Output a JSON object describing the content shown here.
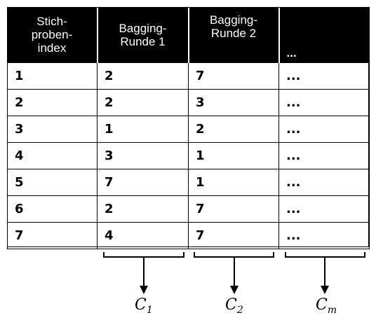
{
  "header": {
    "col1": [
      "Stich-",
      "proben-",
      "index"
    ],
    "col2": [
      "Bagging-",
      "Runde 1"
    ],
    "col3": [
      "Bagging-",
      "Runde 2"
    ],
    "col4": "..."
  },
  "rows": [
    [
      "1",
      "2",
      "7",
      "..."
    ],
    [
      "2",
      "2",
      "3",
      "..."
    ],
    [
      "3",
      "1",
      "2",
      "..."
    ],
    [
      "4",
      "3",
      "1",
      "..."
    ],
    [
      "5",
      "7",
      "1",
      "..."
    ],
    [
      "6",
      "2",
      "7",
      "..."
    ],
    [
      "7",
      "4",
      "7",
      "..."
    ]
  ],
  "classifiers": [
    {
      "base": "C",
      "sub": "1"
    },
    {
      "base": "C",
      "sub": "2"
    },
    {
      "base": "C",
      "sub": "m"
    }
  ]
}
